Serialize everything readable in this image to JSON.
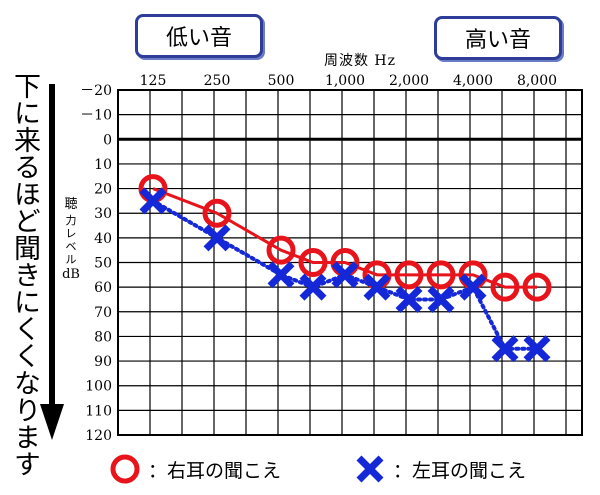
{
  "labels": {
    "low_tone": "低い音",
    "high_tone": "高い音",
    "frequency_axis": "周波数 Hz",
    "level_axis_lines": [
      "聴",
      "力レベル",
      "dB"
    ],
    "direction_note": "下に来るほど聞きにくくなります"
  },
  "legend": {
    "right_ear": "：右耳の聞こえ",
    "left_ear": "：左耳の聞こえ"
  },
  "colors": {
    "right_ear": "#e8141b",
    "left_ear": "#1428d8",
    "box_border": "#2f3d9a"
  },
  "chart_data": {
    "type": "line",
    "x_tick_labels": [
      "125",
      "250",
      "500",
      "1,000",
      "2,000",
      "4,000",
      "8,000"
    ],
    "x_tick_positions": [
      0,
      1,
      2,
      3,
      4,
      5,
      6
    ],
    "y_ticks": [
      -20,
      -10,
      0,
      10,
      20,
      30,
      40,
      50,
      60,
      70,
      80,
      90,
      100,
      110,
      120
    ],
    "y_tick_labels": [
      "－20",
      "－10",
      "0",
      "10",
      "20",
      "30",
      "40",
      "50",
      "60",
      "70",
      "80",
      "90",
      "100",
      "110",
      "120"
    ],
    "ylim": [
      -20,
      120
    ],
    "y_inverted": true,
    "grid": true,
    "series": [
      {
        "key": "right",
        "marker": "circle",
        "line_style": "solid",
        "x": [
          0,
          1,
          2,
          2.5,
          3,
          3.5,
          4,
          4.5,
          5,
          5.5,
          6
        ],
        "y": [
          20,
          30,
          45,
          50,
          50,
          55,
          55,
          55,
          55,
          60,
          60
        ]
      },
      {
        "key": "left",
        "marker": "cross",
        "line_style": "dotted",
        "x": [
          0,
          1,
          2,
          2.5,
          3,
          3.5,
          4,
          4.5,
          5,
          5.5,
          6
        ],
        "y": [
          25,
          40,
          55,
          60,
          55,
          60,
          65,
          65,
          60,
          85,
          85
        ]
      }
    ]
  }
}
